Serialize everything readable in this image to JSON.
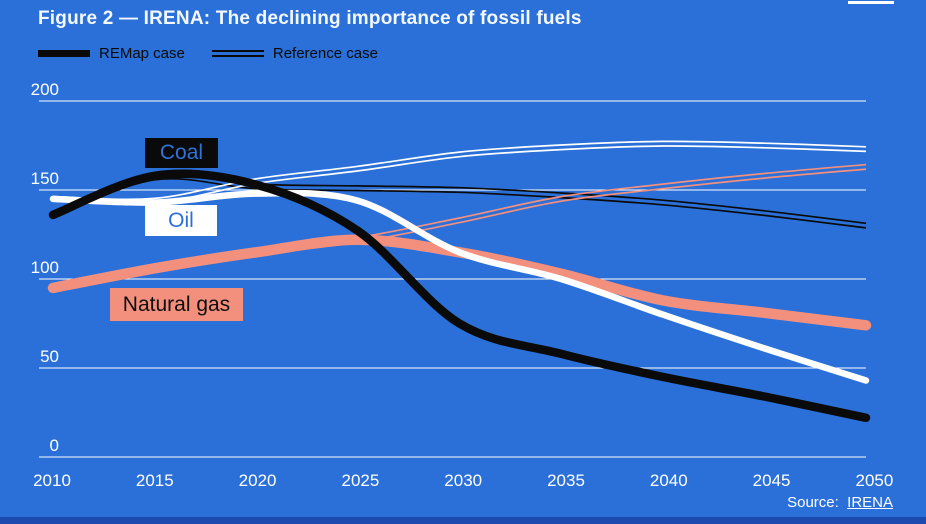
{
  "title": "Figure 2 — IRENA: The declining importance of fossil fuels",
  "legend": {
    "items": [
      {
        "label": "REMap case",
        "swatch": "thick-line"
      },
      {
        "label": "Reference case",
        "swatch": "double-line"
      }
    ]
  },
  "source": {
    "label": "Source:",
    "link_text": "IRENA"
  },
  "colors": {
    "background": "#2a70d8",
    "bottom_bar": "#1d4aae",
    "coal": "#0a0a0a",
    "oil": "#ffffff",
    "natural_gas": "#f2907d",
    "axis_text": "#ffffff",
    "gridline": "#ffffff",
    "label_blue": "#2a70d8"
  },
  "chart_data": {
    "type": "line",
    "x": [
      2010,
      2015,
      2020,
      2025,
      2030,
      2035,
      2040,
      2045,
      2050
    ],
    "x_ticks": [
      "2010",
      "2015",
      "2020",
      "2025",
      "2030",
      "2035",
      "2040",
      "2045",
      "2050"
    ],
    "y_ticks": [
      0,
      50,
      100,
      150,
      200
    ],
    "ylim": [
      0,
      200
    ],
    "xlabel": "",
    "ylabel": "",
    "grid": true,
    "legend_position": "top-left",
    "series": [
      {
        "id": "coal-remap",
        "name": "Coal — REMap case",
        "fuel": "coal",
        "style": "thick",
        "values": [
          136,
          158,
          153,
          127,
          75,
          58,
          45,
          34,
          22
        ]
      },
      {
        "id": "oil-remap",
        "name": "Oil — REMap case",
        "fuel": "oil",
        "style": "thick",
        "values": [
          145,
          143,
          148,
          144,
          115,
          100,
          80,
          61,
          43
        ]
      },
      {
        "id": "gas-remap",
        "name": "Natural gas — REMap case",
        "fuel": "natural_gas",
        "style": "thick",
        "values": [
          95,
          106,
          115,
          122,
          115,
          103,
          88,
          81,
          74
        ]
      },
      {
        "id": "coal-ref",
        "name": "Coal — Reference case",
        "fuel": "coal",
        "style": "double",
        "values": [
          136,
          157,
          152,
          151,
          150,
          147,
          143,
          137,
          130
        ]
      },
      {
        "id": "oil-ref",
        "name": "Oil — Reference case",
        "fuel": "oil",
        "style": "double",
        "values": [
          145,
          144,
          155,
          162,
          170,
          174,
          176,
          175,
          173
        ]
      },
      {
        "id": "gas-ref",
        "name": "Natural gas — Reference case",
        "fuel": "natural_gas",
        "style": "double",
        "values": [
          95,
          106,
          115,
          122,
          133,
          145,
          152,
          158,
          163
        ]
      }
    ],
    "annotations": [
      {
        "id": "coal",
        "label": "Coal"
      },
      {
        "id": "oil",
        "label": "Oil"
      },
      {
        "id": "gas",
        "label": "Natural gas"
      }
    ]
  }
}
